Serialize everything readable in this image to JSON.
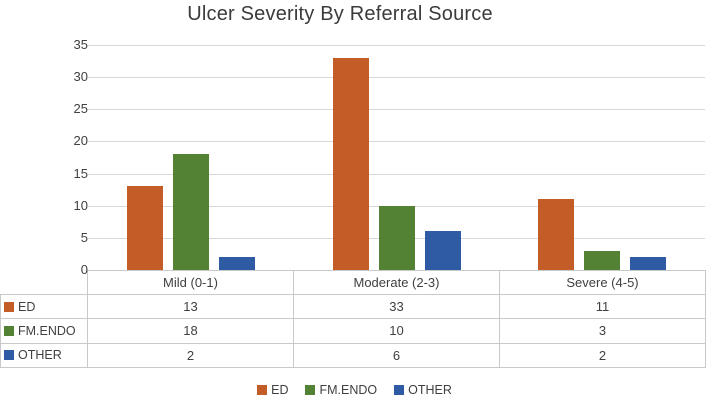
{
  "chart_data": {
    "type": "bar",
    "title": "Ulcer Severity By Referral Source",
    "categories": [
      "Mild (0-1)",
      "Moderate (2-3)",
      "Severe (4-5)"
    ],
    "series": [
      {
        "name": "ED",
        "color": "#c45c28",
        "values": [
          13,
          33,
          11
        ]
      },
      {
        "name": "FM.ENDO",
        "color": "#548235",
        "values": [
          18,
          10,
          3
        ]
      },
      {
        "name": "OTHER",
        "color": "#2e5ba4",
        "values": [
          2,
          6,
          2
        ]
      }
    ],
    "yticks": [
      0,
      5,
      10,
      15,
      20,
      25,
      30,
      35
    ],
    "ylim": [
      0,
      35
    ],
    "xlabel": "",
    "ylabel": "",
    "grid": true,
    "legend_position": "bottom",
    "data_table_shown": true,
    "colors": {
      "gridline": "#d9d9d9",
      "table_border": "#c9c9c9",
      "text": "#404040"
    }
  }
}
